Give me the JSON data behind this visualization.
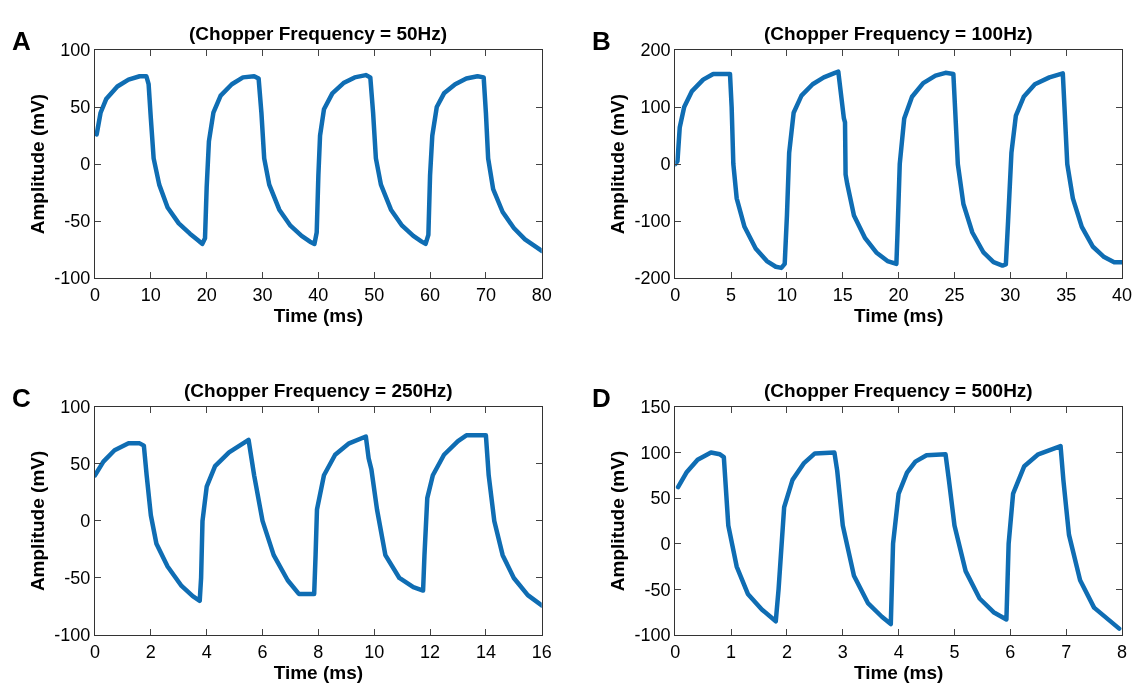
{
  "chart_data": [
    {
      "type": "line",
      "title": "(Chopper Frequency = 50Hz)",
      "xlabel": "Time (ms)",
      "ylabel": "Amplitude (mV)",
      "annotations": [
        "A"
      ],
      "color": "#0f6db3",
      "marker": "none",
      "line_style": "solid",
      "xlim": [
        0,
        80
      ],
      "xticks": [
        0,
        10,
        20,
        30,
        40,
        50,
        60,
        70,
        80
      ],
      "ylim": [
        -100,
        100
      ],
      "yticks": [
        -100,
        -50,
        0,
        50,
        100
      ],
      "x": [
        0.3,
        1,
        2,
        4,
        6,
        8,
        9.2,
        9.6,
        10,
        10.5,
        11.5,
        13,
        15,
        17,
        18.5,
        19.2,
        19.7,
        20,
        20.4,
        21.2,
        22.5,
        24.5,
        26.5,
        28.5,
        29.3,
        29.8,
        30.3,
        31.2,
        33,
        35,
        37,
        38.5,
        39.3,
        39.7,
        40,
        40.3,
        41,
        42.5,
        44.5,
        46.5,
        48.5,
        49.3,
        49.8,
        50.3,
        51.2,
        53,
        55,
        57,
        58.5,
        59.2,
        59.7,
        60,
        60.4,
        61.2,
        62.5,
        64.5,
        66.5,
        68.5,
        69.6,
        70,
        70.4,
        71.3,
        73,
        75,
        77,
        80
      ],
      "values": [
        26,
        45,
        57,
        68,
        74,
        77,
        77,
        70,
        40,
        5,
        -18,
        -38,
        -52,
        -61,
        -67,
        -70,
        -65,
        -20,
        20,
        45,
        60,
        70,
        76,
        77,
        75,
        45,
        5,
        -18,
        -40,
        -54,
        -63,
        -68,
        -70,
        -60,
        -10,
        25,
        48,
        62,
        71,
        76,
        78,
        76,
        45,
        5,
        -18,
        -40,
        -54,
        -63,
        -68,
        -70,
        -62,
        -10,
        25,
        50,
        62,
        70,
        75,
        77,
        76,
        45,
        5,
        -22,
        -42,
        -56,
        -66,
        -76
      ]
    },
    {
      "type": "line",
      "title": "(Chopper Frequency = 100Hz)",
      "xlabel": "Time (ms)",
      "ylabel": "Amplitude (mV)",
      "annotations": [
        "B"
      ],
      "color": "#0f6db3",
      "marker": "none",
      "line_style": "solid",
      "xlim": [
        0,
        40
      ],
      "xticks": [
        0,
        5,
        10,
        15,
        20,
        25,
        30,
        35,
        40
      ],
      "ylim": [
        -200,
        200
      ],
      "yticks": [
        -200,
        -100,
        0,
        100,
        200
      ],
      "x": [
        0,
        0.2,
        0.4,
        0.8,
        1.5,
        2.5,
        3.4,
        4.9,
        5.05,
        5.2,
        5.5,
        6.2,
        7.2,
        8.2,
        9,
        9.5,
        9.8,
        10,
        10.2,
        10.6,
        11.3,
        12.3,
        13.3,
        14.3,
        14.6,
        15.1,
        15.2,
        15.25,
        15.4,
        16,
        17,
        18,
        19,
        19.8,
        19.9,
        20.1,
        20.5,
        21.2,
        22.2,
        23.3,
        24.2,
        24.9,
        25.05,
        25.3,
        25.8,
        26.6,
        27.6,
        28.5,
        29.3,
        29.6,
        29.8,
        30.1,
        30.5,
        31.2,
        32.2,
        33.5,
        34.7,
        34.85,
        35.1,
        35.6,
        36.4,
        37.4,
        38.4,
        39.3,
        40
      ],
      "values": [
        0,
        5,
        64,
        100,
        128,
        148,
        158,
        158,
        100,
        0,
        -60,
        -110,
        -148,
        -170,
        -180,
        -182,
        -175,
        -90,
        20,
        90,
        120,
        140,
        152,
        160,
        162,
        80,
        73,
        -18,
        -35,
        -90,
        -130,
        -155,
        -170,
        -175,
        -120,
        0,
        80,
        118,
        142,
        155,
        160,
        158,
        100,
        0,
        -70,
        -120,
        -155,
        -172,
        -178,
        -176,
        -100,
        20,
        85,
        118,
        140,
        152,
        159,
        100,
        0,
        -60,
        -110,
        -145,
        -163,
        -172,
        -172
      ]
    },
    {
      "type": "line",
      "title": "(Chopper Frequency = 250Hz)",
      "xlabel": "Time (ms)",
      "ylabel": "Amplitude (mV)",
      "annotations": [
        "C"
      ],
      "color": "#0f6db3",
      "marker": "none",
      "line_style": "solid",
      "xlim": [
        0,
        16
      ],
      "xticks": [
        0,
        2,
        4,
        6,
        8,
        10,
        12,
        14,
        16
      ],
      "ylim": [
        -100,
        100
      ],
      "yticks": [
        -100,
        -50,
        0,
        50,
        100
      ],
      "x": [
        0,
        0.3,
        0.7,
        1.2,
        1.6,
        1.75,
        1.85,
        2.0,
        2.2,
        2.6,
        3.1,
        3.5,
        3.75,
        3.8,
        3.85,
        4.0,
        4.3,
        4.8,
        5.5,
        5.7,
        6.0,
        6.4,
        6.9,
        7.3,
        7.85,
        7.9,
        7.95,
        8.2,
        8.6,
        9.1,
        9.7,
        9.8,
        9.9,
        10.1,
        10.4,
        10.9,
        11.4,
        11.75,
        11.8,
        11.9,
        12.1,
        12.5,
        13,
        13.3,
        14.0,
        14.1,
        14.3,
        14.6,
        15,
        15.5,
        16
      ],
      "values": [
        40,
        52,
        62,
        68,
        68,
        66,
        40,
        5,
        -20,
        -40,
        -57,
        -66,
        -70,
        -50,
        0,
        30,
        48,
        60,
        71,
        40,
        0,
        -30,
        -52,
        -64,
        -64,
        -30,
        10,
        40,
        58,
        68,
        74,
        55,
        45,
        10,
        -30,
        -50,
        -58,
        -61,
        -30,
        20,
        40,
        58,
        70,
        75,
        75,
        40,
        0,
        -30,
        -50,
        -65,
        -74
      ]
    },
    {
      "type": "line",
      "title": "(Chopper Frequency = 500Hz)",
      "xlabel": "Time (ms)",
      "ylabel": "Amplitude (mV)",
      "annotations": [
        "D"
      ],
      "color": "#0f6db3",
      "marker": "none",
      "line_style": "solid",
      "xlim": [
        0,
        8
      ],
      "xticks": [
        0,
        1,
        2,
        3,
        4,
        5,
        6,
        7,
        8
      ],
      "ylim": [
        -100,
        150
      ],
      "yticks": [
        -100,
        -50,
        0,
        50,
        100,
        150
      ],
      "x": [
        0.05,
        0.2,
        0.4,
        0.64,
        0.8,
        0.87,
        0.95,
        1.1,
        1.3,
        1.55,
        1.8,
        1.85,
        1.95,
        2.1,
        2.3,
        2.5,
        2.85,
        2.9,
        3.0,
        3.2,
        3.45,
        3.7,
        3.86,
        3.9,
        4.0,
        4.15,
        4.3,
        4.5,
        4.84,
        4.9,
        5.0,
        5.2,
        5.45,
        5.7,
        5.93,
        5.97,
        6.05,
        6.25,
        6.5,
        6.9,
        6.95,
        7.05,
        7.25,
        7.5,
        7.95
      ],
      "values": [
        62,
        78,
        92,
        100,
        98,
        95,
        20,
        -25,
        -55,
        -72,
        -85,
        -50,
        40,
        70,
        88,
        99,
        100,
        80,
        20,
        -35,
        -65,
        -80,
        -88,
        0,
        55,
        78,
        90,
        97,
        98,
        70,
        20,
        -30,
        -60,
        -75,
        -83,
        0,
        55,
        85,
        98,
        107,
        70,
        10,
        -40,
        -70,
        -93
      ]
    }
  ]
}
